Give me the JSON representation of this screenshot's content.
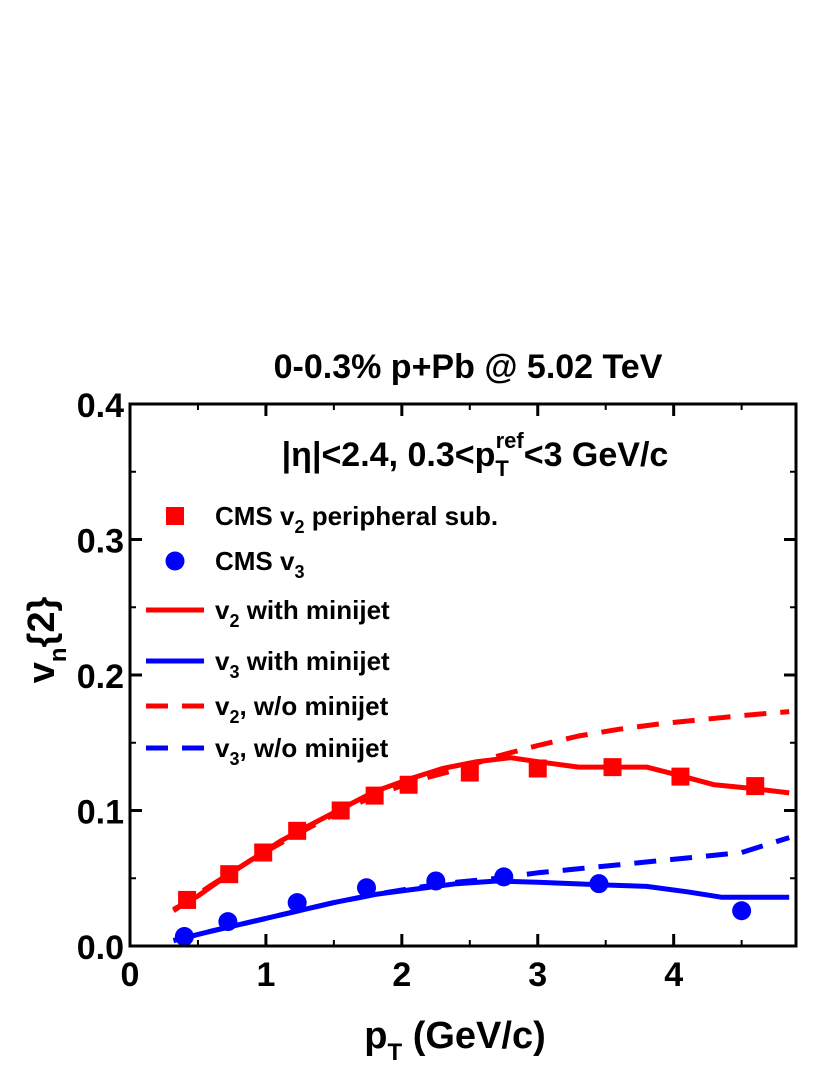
{
  "chart_data": {
    "type": "line",
    "title": "0-0.3% p+Pb @ 5.02 TeV",
    "annotation": {
      "prefix": "|η|<2.4, 0.3<p",
      "sub": "T",
      "sup": "ref",
      "suffix": "<3 GeV/c"
    },
    "xlabel": {
      "main": "p",
      "sub": "T",
      "rest": " (GeV/c)"
    },
    "ylabel": {
      "main": "v",
      "sub": "n",
      "rest": "{2}"
    },
    "xlim": [
      0,
      4.9
    ],
    "ylim": [
      0,
      0.4
    ],
    "xticks": [
      "0",
      "1",
      "2",
      "3",
      "4"
    ],
    "yticks": [
      "0.0",
      "0.1",
      "0.2",
      "0.3",
      "0.4"
    ],
    "colors": {
      "red": "#ff0000",
      "blue": "#0000ff"
    },
    "legend": {
      "placement": "top-left",
      "entries": [
        {
          "main": "CMS v",
          "sub": "2",
          "rest": " peripheral sub.",
          "marker": "square",
          "color": "#ff0000"
        },
        {
          "main": "CMS v",
          "sub": "3",
          "rest": "",
          "marker": "circle",
          "color": "#0000ff"
        },
        {
          "main": "v",
          "sub": "2",
          "rest": " with minijet",
          "marker": "solid",
          "color": "#ff0000"
        },
        {
          "main": "v",
          "sub": "3",
          "rest": " with minijet",
          "marker": "solid",
          "color": "#0000ff"
        },
        {
          "main": "v",
          "sub": "2",
          "rest": ", w/o minijet",
          "marker": "dashed",
          "color": "#ff0000"
        },
        {
          "main": "v",
          "sub": "3",
          "rest": ", w/o minijet",
          "marker": "dashed",
          "color": "#0000ff"
        }
      ]
    },
    "series": [
      {
        "name": "CMS v2 peripheral sub.",
        "style": "square",
        "color": "#ff0000",
        "x": [
          0.42,
          0.73,
          0.98,
          1.23,
          1.55,
          1.8,
          2.05,
          2.5,
          3.0,
          3.55,
          4.05,
          4.6
        ],
        "y": [
          0.034,
          0.053,
          0.069,
          0.085,
          0.1,
          0.111,
          0.119,
          0.128,
          0.131,
          0.132,
          0.125,
          0.118
        ]
      },
      {
        "name": "CMS v3",
        "style": "circle",
        "color": "#0000ff",
        "x": [
          0.4,
          0.72,
          1.23,
          1.74,
          2.25,
          2.75,
          3.45,
          4.5
        ],
        "y": [
          0.007,
          0.018,
          0.032,
          0.043,
          0.048,
          0.051,
          0.046,
          0.026
        ]
      },
      {
        "name": "v2 with minijet",
        "style": "solid",
        "color": "#ff0000",
        "x": [
          0.32,
          0.5,
          0.7,
          0.9,
          1.1,
          1.3,
          1.55,
          1.8,
          2.05,
          2.3,
          2.55,
          2.8,
          3.0,
          3.3,
          3.5,
          3.8,
          4.0,
          4.3,
          4.6,
          4.85
        ],
        "y": [
          0.027,
          0.037,
          0.051,
          0.064,
          0.077,
          0.088,
          0.101,
          0.114,
          0.123,
          0.131,
          0.136,
          0.139,
          0.136,
          0.132,
          0.132,
          0.132,
          0.127,
          0.119,
          0.116,
          0.113
        ]
      },
      {
        "name": "v3 with minijet",
        "style": "solid",
        "color": "#0000ff",
        "x": [
          0.32,
          0.6,
          0.9,
          1.2,
          1.5,
          1.8,
          2.1,
          2.4,
          2.7,
          3.0,
          3.5,
          3.8,
          4.1,
          4.35,
          4.6,
          4.85
        ],
        "y": [
          0.004,
          0.011,
          0.018,
          0.025,
          0.032,
          0.038,
          0.042,
          0.046,
          0.048,
          0.047,
          0.045,
          0.044,
          0.04,
          0.036,
          0.036,
          0.036
        ]
      },
      {
        "name": "v2, w/o minijet",
        "style": "dashed",
        "color": "#ff0000",
        "x": [
          0.32,
          0.6,
          0.9,
          1.2,
          1.5,
          1.8,
          2.1,
          2.4,
          2.7,
          3.0,
          3.3,
          3.6,
          3.9,
          4.2,
          4.5,
          4.85
        ],
        "y": [
          0.026,
          0.045,
          0.064,
          0.081,
          0.097,
          0.111,
          0.122,
          0.13,
          0.14,
          0.148,
          0.155,
          0.16,
          0.164,
          0.167,
          0.17,
          0.173
        ]
      },
      {
        "name": "v3, w/o minijet",
        "style": "dashed",
        "color": "#0000ff",
        "x": [
          0.32,
          0.6,
          0.9,
          1.2,
          1.5,
          1.8,
          2.1,
          2.4,
          2.7,
          3.0,
          3.3,
          3.6,
          3.9,
          4.2,
          4.5,
          4.85
        ],
        "y": [
          0.004,
          0.011,
          0.018,
          0.025,
          0.032,
          0.038,
          0.043,
          0.047,
          0.05,
          0.054,
          0.057,
          0.06,
          0.063,
          0.066,
          0.069,
          0.08
        ]
      }
    ]
  }
}
